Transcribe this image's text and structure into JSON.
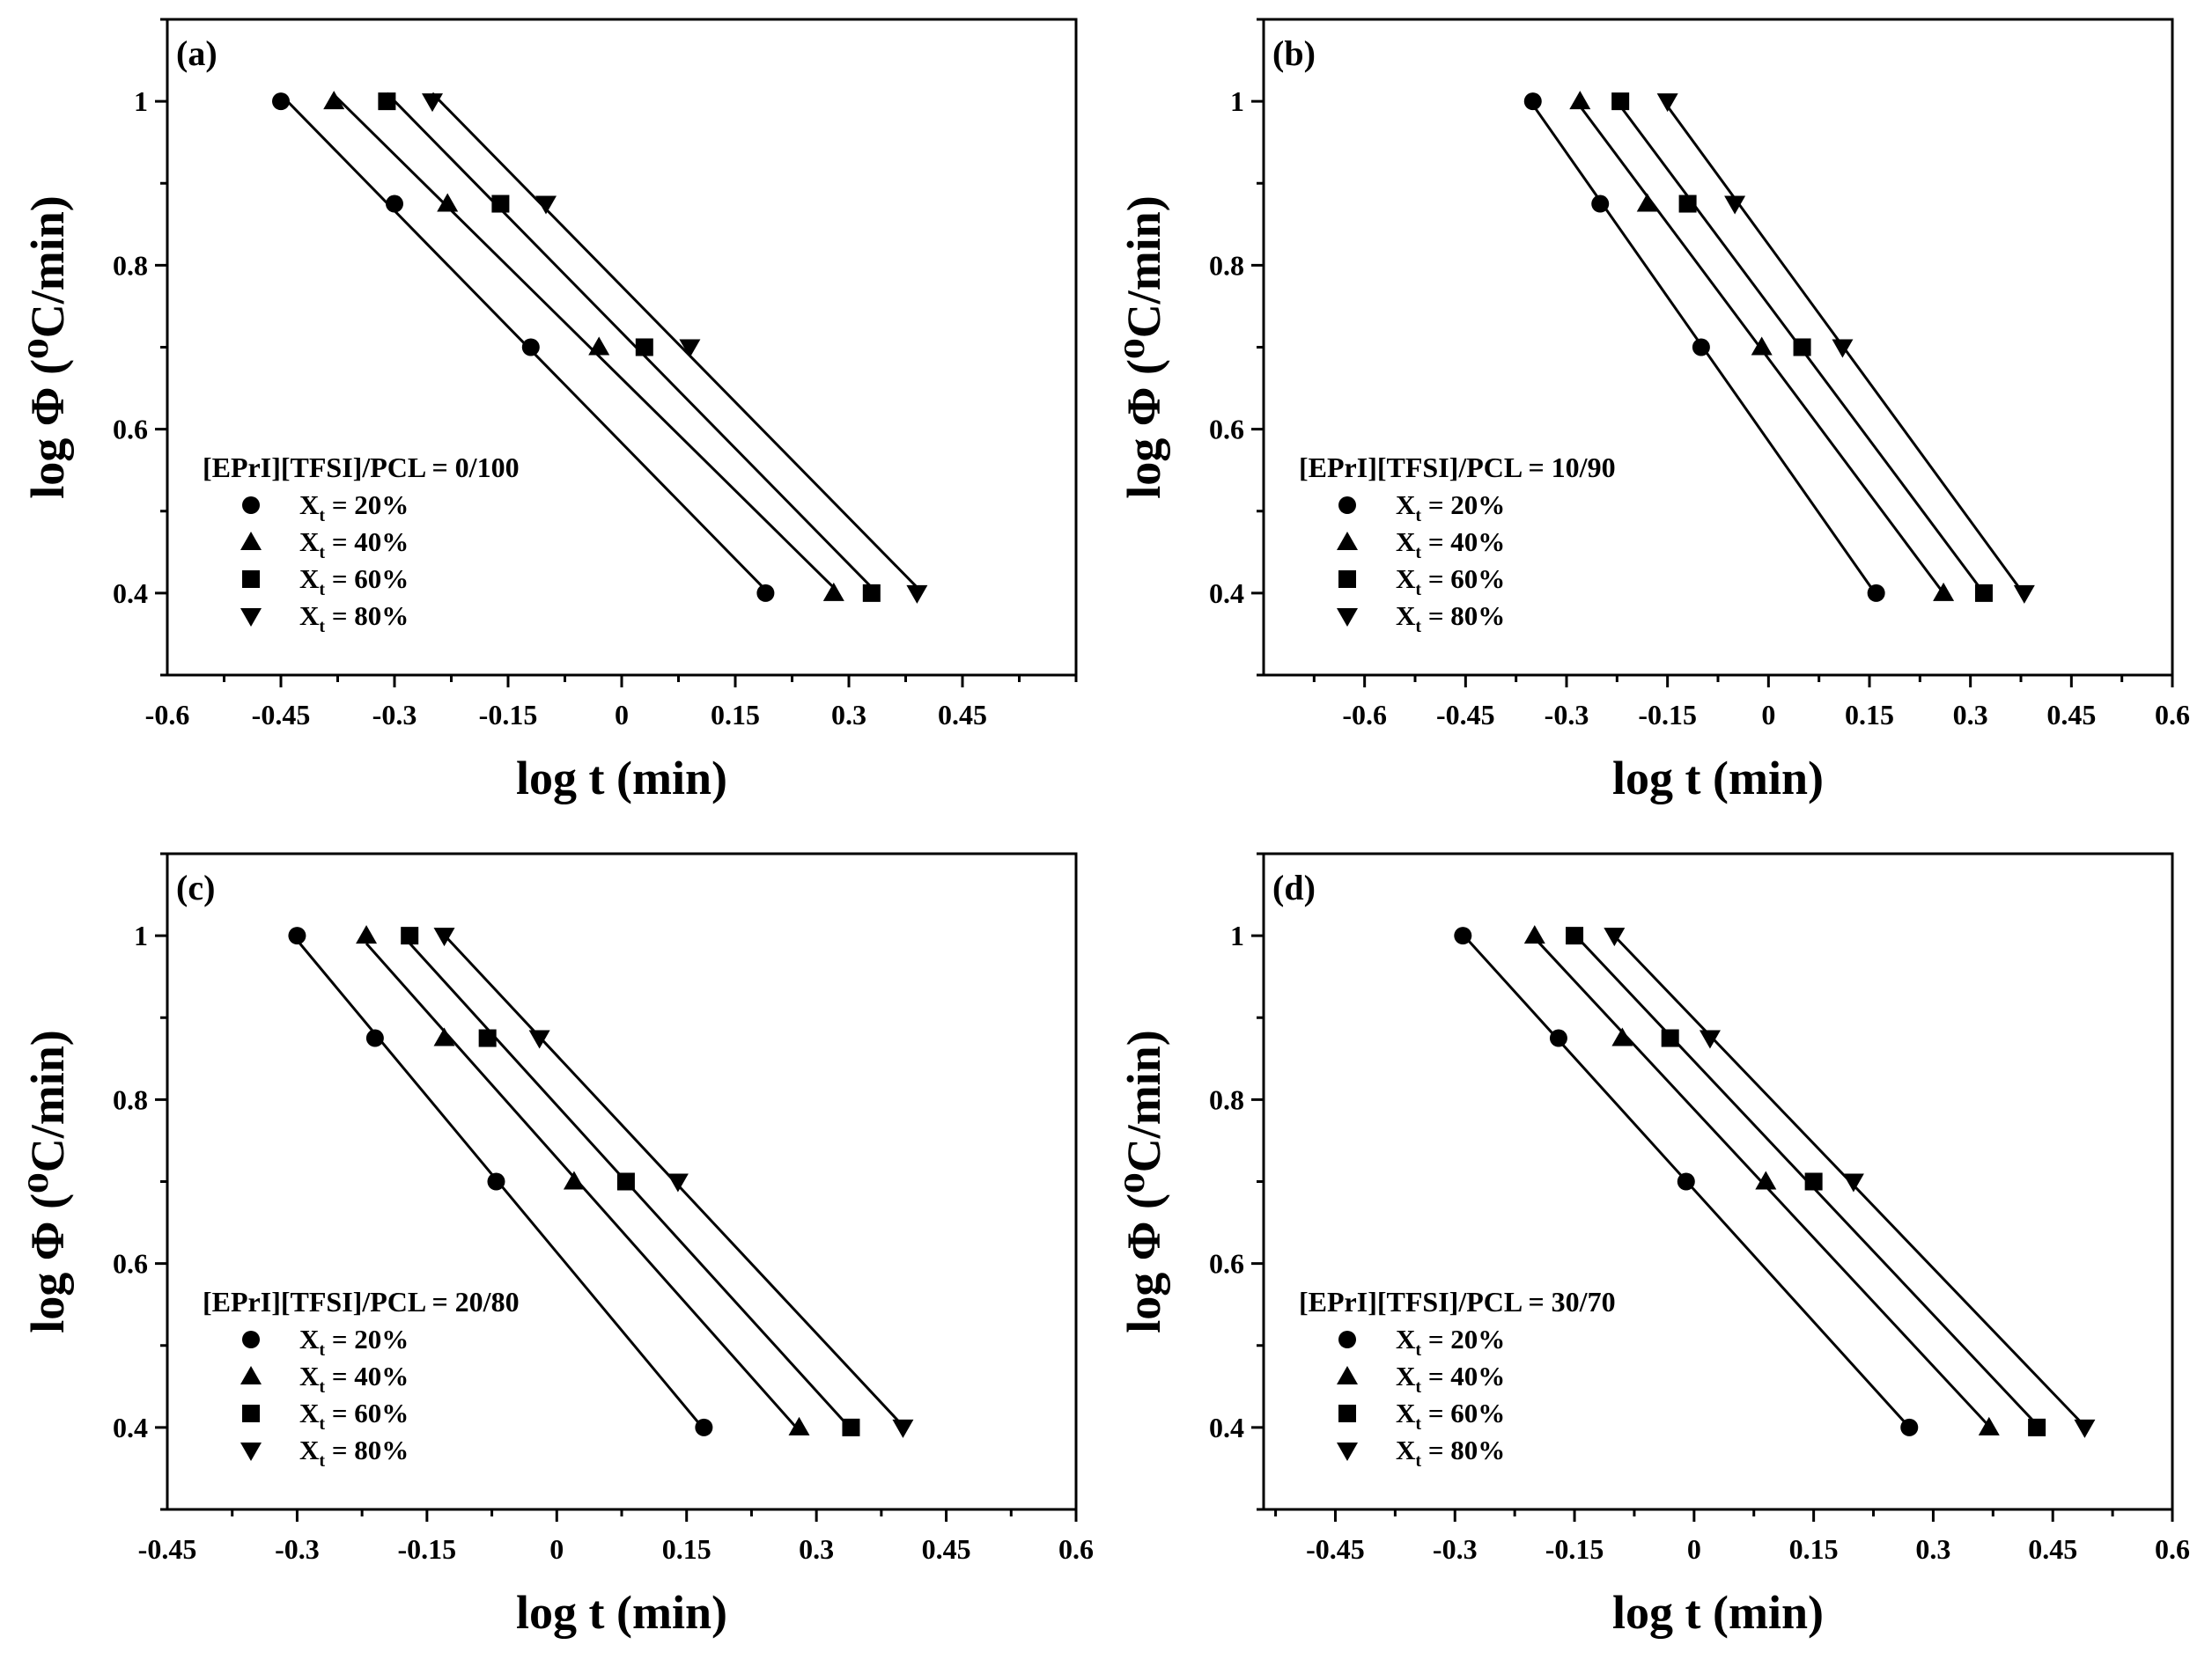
{
  "chart_data": [
    {
      "type": "scatter",
      "panel_label": "(a)",
      "xlabel": "log t (min)",
      "ylabel": "log Φ (⁰C/min)",
      "xlim": [
        -0.6,
        0.6
      ],
      "ylim": [
        0.3,
        1.1
      ],
      "xticks": [
        -0.6,
        -0.45,
        -0.3,
        -0.15,
        0,
        0.15,
        0.3,
        0.45
      ],
      "xtick_labels": [
        "-0.6",
        "-0.45",
        "-0.3",
        "-0.15",
        "0",
        "0.15",
        "0.3",
        "0.45"
      ],
      "yticks": [
        0.4,
        0.6,
        0.8,
        1.0
      ],
      "ytick_labels": [
        "0.4",
        "0.6",
        "0.8",
        "1"
      ],
      "legend_title": "[EPrI][TFSI]/PCL = 0/100",
      "legend_position": "lower-left",
      "y": [
        1.0,
        0.875,
        0.7,
        0.4
      ],
      "series": [
        {
          "name": "Xt = 20%",
          "label_main": "X",
          "label_sub": "t",
          "label_rest": " = 20%",
          "marker": "circle",
          "x": [
            -0.45,
            -0.3,
            -0.12,
            0.19
          ]
        },
        {
          "name": "Xt = 40%",
          "label_main": "X",
          "label_sub": "t",
          "label_rest": " = 40%",
          "marker": "triangle-up",
          "x": [
            -0.38,
            -0.23,
            -0.03,
            0.28
          ]
        },
        {
          "name": "Xt = 60%",
          "label_main": "X",
          "label_sub": "t",
          "label_rest": " = 60%",
          "marker": "square",
          "x": [
            -0.31,
            -0.16,
            0.03,
            0.33
          ]
        },
        {
          "name": "Xt = 80%",
          "label_main": "X",
          "label_sub": "t",
          "label_rest": " = 80%",
          "marker": "triangle-down",
          "x": [
            -0.25,
            -0.1,
            0.09,
            0.39
          ]
        }
      ]
    },
    {
      "type": "scatter",
      "panel_label": "(b)",
      "xlabel": "log t (min)",
      "ylabel": "log Φ (⁰C/min)",
      "xlim": [
        -0.75,
        0.6
      ],
      "ylim": [
        0.3,
        1.1
      ],
      "xticks": [
        -0.6,
        -0.45,
        -0.3,
        -0.15,
        0,
        0.15,
        0.3,
        0.45,
        0.6
      ],
      "xtick_labels": [
        "-0.6",
        "-0.45",
        "-0.3",
        "-0.15",
        "0",
        "0.15",
        "0.3",
        "0.45",
        "0.6"
      ],
      "yticks": [
        0.4,
        0.6,
        0.8,
        1.0
      ],
      "ytick_labels": [
        "0.4",
        "0.6",
        "0.8",
        "1"
      ],
      "legend_title": "[EPrI][TFSI]/PCL = 10/90",
      "legend_position": "lower-left",
      "y": [
        1.0,
        0.875,
        0.7,
        0.4
      ],
      "series": [
        {
          "name": "Xt = 20%",
          "label_main": "X",
          "label_sub": "t",
          "label_rest": " = 20%",
          "marker": "circle",
          "x": [
            -0.35,
            -0.25,
            -0.1,
            0.16
          ]
        },
        {
          "name": "Xt = 40%",
          "label_main": "X",
          "label_sub": "t",
          "label_rest": " = 40%",
          "marker": "triangle-up",
          "x": [
            -0.28,
            -0.18,
            -0.01,
            0.26
          ]
        },
        {
          "name": "Xt = 60%",
          "label_main": "X",
          "label_sub": "t",
          "label_rest": " = 60%",
          "marker": "square",
          "x": [
            -0.22,
            -0.12,
            0.05,
            0.32
          ]
        },
        {
          "name": "Xt = 80%",
          "label_main": "X",
          "label_sub": "t",
          "label_rest": " = 80%",
          "marker": "triangle-down",
          "x": [
            -0.15,
            -0.05,
            0.11,
            0.38
          ]
        }
      ]
    },
    {
      "type": "scatter",
      "panel_label": "(c)",
      "xlabel": "log t (min)",
      "ylabel": "log Φ (⁰C/min)",
      "xlim": [
        -0.45,
        0.6
      ],
      "ylim": [
        0.3,
        1.1
      ],
      "xticks": [
        -0.45,
        -0.3,
        -0.15,
        0,
        0.15,
        0.3,
        0.45,
        0.6
      ],
      "xtick_labels": [
        "-0.45",
        "-0.3",
        "-0.15",
        "0",
        "0.15",
        "0.3",
        "0.45",
        "0.6"
      ],
      "yticks": [
        0.4,
        0.6,
        0.8,
        1.0
      ],
      "ytick_labels": [
        "0.4",
        "0.6",
        "0.8",
        "1"
      ],
      "legend_title": "[EPrI][TFSI]/PCL = 20/80",
      "legend_position": "lower-left",
      "y": [
        1.0,
        0.875,
        0.7,
        0.4
      ],
      "series": [
        {
          "name": "Xt = 20%",
          "label_main": "X",
          "label_sub": "t",
          "label_rest": " = 20%",
          "marker": "circle",
          "x": [
            -0.3,
            -0.21,
            -0.07,
            0.17
          ]
        },
        {
          "name": "Xt = 40%",
          "label_main": "X",
          "label_sub": "t",
          "label_rest": " = 40%",
          "marker": "triangle-up",
          "x": [
            -0.22,
            -0.13,
            0.02,
            0.28
          ]
        },
        {
          "name": "Xt = 60%",
          "label_main": "X",
          "label_sub": "t",
          "label_rest": " = 60%",
          "marker": "square",
          "x": [
            -0.17,
            -0.08,
            0.08,
            0.34
          ]
        },
        {
          "name": "Xt = 80%",
          "label_main": "X",
          "label_sub": "t",
          "label_rest": " = 80%",
          "marker": "triangle-down",
          "x": [
            -0.13,
            -0.02,
            0.14,
            0.4
          ]
        }
      ]
    },
    {
      "type": "scatter",
      "panel_label": "(d)",
      "xlabel": "log t (min)",
      "ylabel": "log Φ (⁰C/min)",
      "xlim": [
        -0.54,
        0.6
      ],
      "ylim": [
        0.3,
        1.1
      ],
      "xticks": [
        -0.45,
        -0.3,
        -0.15,
        0,
        0.15,
        0.3,
        0.45,
        0.6
      ],
      "xtick_labels": [
        "-0.45",
        "-0.3",
        "-0.15",
        "0",
        "0.15",
        "0.3",
        "0.45",
        "0.6"
      ],
      "yticks": [
        0.4,
        0.6,
        0.8,
        1.0
      ],
      "ytick_labels": [
        "0.4",
        "0.6",
        "0.8",
        "1"
      ],
      "legend_title": "[EPrI][TFSI]/PCL = 30/70",
      "legend_position": "lower-left",
      "y": [
        1.0,
        0.875,
        0.7,
        0.4
      ],
      "series": [
        {
          "name": "Xt = 20%",
          "label_main": "X",
          "label_sub": "t",
          "label_rest": " = 20%",
          "marker": "circle",
          "x": [
            -0.29,
            -0.17,
            -0.01,
            0.27
          ]
        },
        {
          "name": "Xt = 40%",
          "label_main": "X",
          "label_sub": "t",
          "label_rest": " = 40%",
          "marker": "triangle-up",
          "x": [
            -0.2,
            -0.09,
            0.09,
            0.37
          ]
        },
        {
          "name": "Xt = 60%",
          "label_main": "X",
          "label_sub": "t",
          "label_rest": " = 60%",
          "marker": "square",
          "x": [
            -0.15,
            -0.03,
            0.15,
            0.43
          ]
        },
        {
          "name": "Xt = 80%",
          "label_main": "X",
          "label_sub": "t",
          "label_rest": " = 80%",
          "marker": "triangle-down",
          "x": [
            -0.1,
            0.02,
            0.2,
            0.49
          ]
        }
      ]
    }
  ]
}
